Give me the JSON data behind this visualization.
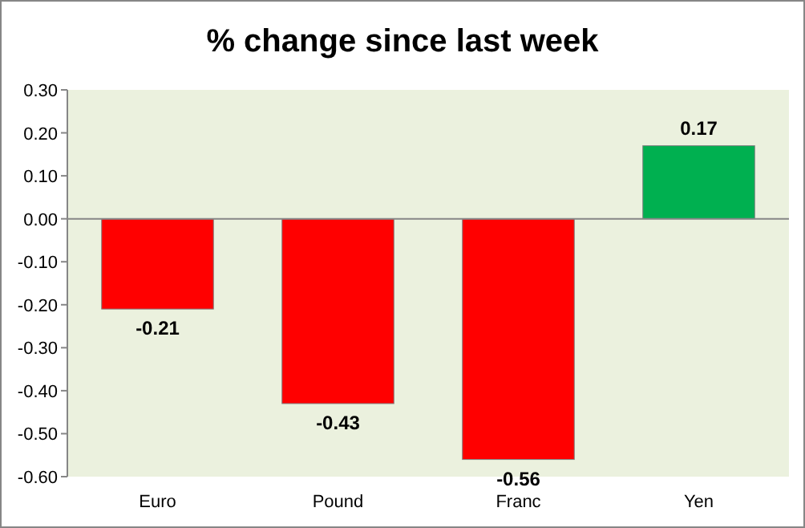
{
  "chart_data": {
    "type": "bar",
    "title": "% change since last week",
    "categories": [
      "Euro",
      "Pound",
      "Franc",
      "Yen"
    ],
    "values": [
      -0.21,
      -0.43,
      -0.56,
      0.17
    ],
    "colors": [
      "#ff0000",
      "#ff0000",
      "#ff0000",
      "#00b050"
    ],
    "value_labels": [
      "-0.21",
      "-0.43",
      "-0.56",
      "0.17"
    ],
    "ylim": [
      -0.6,
      0.3
    ],
    "yticks": [
      {
        "value": 0.3,
        "label": "0.30"
      },
      {
        "value": 0.2,
        "label": "0.20"
      },
      {
        "value": 0.1,
        "label": "0.10"
      },
      {
        "value": 0,
        "label": "0.00"
      },
      {
        "value": -0.1,
        "label": "-0.10"
      },
      {
        "value": -0.2,
        "label": "-0.20"
      },
      {
        "value": -0.3,
        "label": "-0.30"
      },
      {
        "value": -0.4,
        "label": "-0.40"
      },
      {
        "value": -0.5,
        "label": "-0.50"
      },
      {
        "value": -0.6,
        "label": "-0.60"
      }
    ]
  }
}
